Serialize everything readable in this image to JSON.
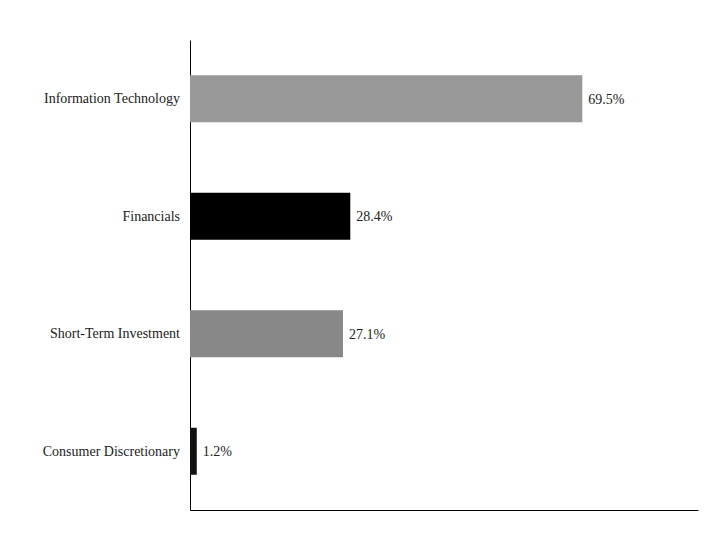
{
  "chart_data": {
    "type": "bar",
    "orientation": "horizontal",
    "categories": [
      "Information Technology",
      "Financials",
      "Short-Term Investment",
      "Consumer Discretionary"
    ],
    "values": [
      69.5,
      28.4,
      27.1,
      1.2
    ],
    "value_labels": [
      "69.5%",
      "28.4%",
      "27.1%",
      "1.2%"
    ],
    "data_labels": true,
    "colors": [
      "#999999",
      "#000000",
      "#888888",
      "#111111"
    ],
    "xlim": [
      0,
      90
    ],
    "tick_labels": "y"
  }
}
